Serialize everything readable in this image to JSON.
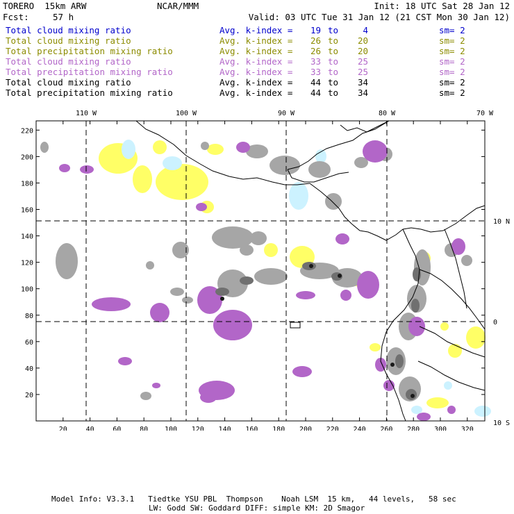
{
  "header": {
    "model": "TORERO  15km ARW",
    "org": "NCAR/MMM",
    "init": "Init: 18 UTC Sat 28 Jan 12",
    "fcst_label": "Fcst:",
    "fcst_value": "57 h",
    "valid": "Valid: 03 UTC Tue 31 Jan 12 (21 CST Mon 30 Jan 12)"
  },
  "legend": [
    {
      "name": "Total cloud mixing ratio",
      "index": "Avg. k-index =",
      "from": "19",
      "to_word": "to",
      "to": "4",
      "sm": "sm= 2",
      "color": "#0000cc"
    },
    {
      "name": "Total cloud mixing ratio",
      "index": "Avg. k-index =",
      "from": "26",
      "to_word": "to",
      "to": "20",
      "sm": "sm= 2",
      "color": "#8c8c00"
    },
    {
      "name": "Total precipitation mixing ratio",
      "index": "Avg. k-index =",
      "from": "26",
      "to_word": "to",
      "to": "20",
      "sm": "sm= 2",
      "color": "#8c8c00"
    },
    {
      "name": "Total cloud mixing ratio",
      "index": "Avg. k-index =",
      "from": "33",
      "to_word": "to",
      "to": "25",
      "sm": "sm= 2",
      "color": "#b266c8"
    },
    {
      "name": "Total precipitation mixing ratio",
      "index": "Avg. k-index =",
      "from": "33",
      "to_word": "to",
      "to": "25",
      "sm": "sm= 2",
      "color": "#b266c8"
    },
    {
      "name": "Total cloud mixing ratio",
      "index": "Avg. k-index =",
      "from": "44",
      "to_word": "to",
      "to": "34",
      "sm": "sm= 2",
      "color": "#000000"
    },
    {
      "name": "Total precipitation mixing ratio",
      "index": "Avg. k-index =",
      "from": "44",
      "to_word": "to",
      "to": "34",
      "sm": "sm= 2",
      "color": "#000000"
    }
  ],
  "map": {
    "lon_labels": [
      "110 W",
      "100 W",
      "90 W",
      "80 W",
      "70 W"
    ],
    "lat_labels": [
      "10 N",
      "0",
      "10 S"
    ],
    "x_ticks": [
      "20",
      "40",
      "60",
      "80",
      "100",
      "120",
      "140",
      "160",
      "180",
      "200",
      "220",
      "240",
      "260",
      "280",
      "300",
      "320"
    ],
    "y_ticks": [
      "20",
      "40",
      "60",
      "80",
      "100",
      "120",
      "140",
      "160",
      "180",
      "200",
      "220"
    ],
    "x_range": [
      0,
      333
    ],
    "y_range": [
      0,
      227
    ],
    "colors": {
      "yellow": "#ffff66",
      "cyan": "#ccf2ff",
      "gray": "#a6a6a6",
      "dark_gray": "#707070",
      "black": "#1a1a1a",
      "purple": "#b266c8",
      "coast": "#000000"
    }
  },
  "footer": {
    "line1": "Model Info: V3.3.1   Tiedtke YSU PBL  Thompson    Noah LSM  15 km,   44 levels,   58 sec",
    "line2": "LW: Godd SW: Goddard DIFF: simple KM: 2D Smagor"
  }
}
